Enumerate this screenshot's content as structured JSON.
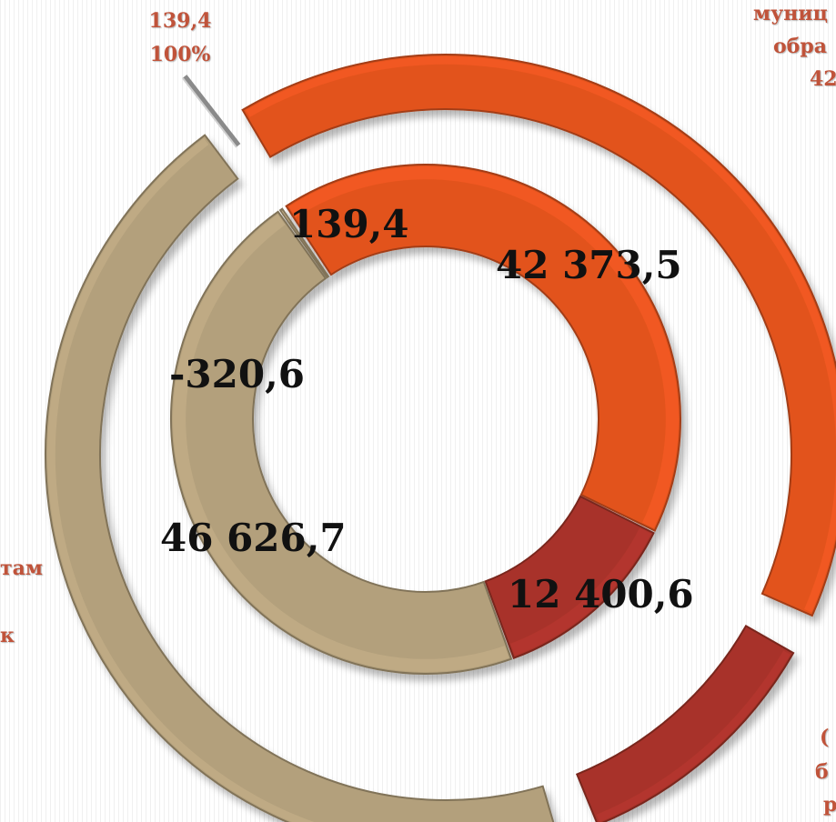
{
  "colors": {
    "orange": "#e2531f",
    "dark_red": "#a8332a",
    "tan": "#b3a07c",
    "gray": "#9a9a9a",
    "label": "#c0533a"
  },
  "chart_data": {
    "type": "donut",
    "inner_ring": {
      "segments": [
        {
          "label": "139,4",
          "value": 139.4,
          "color": "#9a9a9a"
        },
        {
          "label": "42 373,5",
          "value": 42373.5,
          "color": "#e2531f"
        },
        {
          "label": "12 400,6",
          "value": 12400.6,
          "color": "#a8332a"
        },
        {
          "label": "46 626,7",
          "value": 46626.7,
          "color": "#b3a07c"
        },
        {
          "label": "-320,6",
          "value": -320.6,
          "color": "#b3a07c"
        }
      ]
    },
    "outer_ring": {
      "segments": [
        {
          "value": 139.4,
          "color": "#9a9a9a"
        },
        {
          "value": 42373.5,
          "color": "#e2531f"
        },
        {
          "value": 12400.6,
          "color": "#a8332a"
        },
        {
          "value": 46626.7,
          "color": "#b3a07c"
        }
      ]
    },
    "visible_outer_labels": {
      "top_left_lines": [
        "139,4",
        "100%"
      ],
      "top_right_lines": [
        "муниц",
        "обра",
        "42"
      ],
      "left_fragment": "там",
      "left_fragment_2": "к",
      "bottom_right_lines": [
        "(",
        "б",
        "р"
      ]
    }
  }
}
